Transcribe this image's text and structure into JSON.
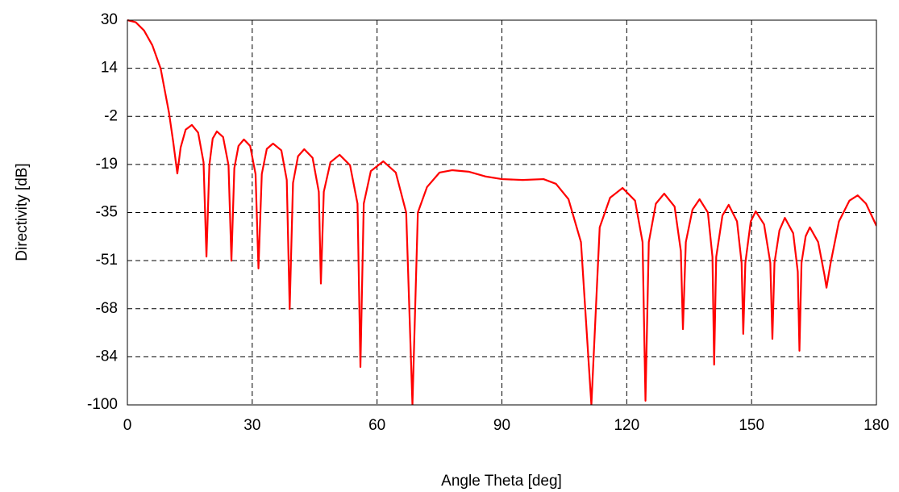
{
  "chart_data": {
    "type": "line",
    "xlabel": "Angle Theta [deg]",
    "ylabel": "Directivity [dB]",
    "xlim": [
      0,
      180
    ],
    "xticks": [
      0,
      30,
      60,
      90,
      120,
      150,
      180
    ],
    "ylim": [
      -100,
      30
    ],
    "yticks": [
      30,
      {
        "value": 13.75,
        "label": "14"
      },
      {
        "value": -2.5,
        "label": "-2"
      },
      {
        "value": -18.75,
        "label": "-19"
      },
      -35,
      {
        "value": -51.25,
        "label": "-51"
      },
      {
        "value": -67.5,
        "label": "-68"
      },
      {
        "value": -83.75,
        "label": "-84"
      },
      -100
    ],
    "grid": true,
    "series": [
      {
        "color": "#ff0000",
        "x": [
          0,
          2,
          4,
          6,
          8,
          10,
          11,
          12,
          12.8,
          14,
          15.5,
          17,
          18.3,
          19,
          19.7,
          20.5,
          21.5,
          23,
          24.3,
          25,
          25.7,
          26.7,
          28,
          29.5,
          30.8,
          31.5,
          32.3,
          33.5,
          35,
          37,
          38.3,
          39,
          39.8,
          41,
          42.5,
          44.5,
          46,
          46.5,
          47.2,
          48.8,
          51,
          53.5,
          55.3,
          56,
          56.8,
          58.5,
          61.5,
          64.5,
          67,
          68.5,
          69.8,
          72,
          75,
          78,
          82,
          86,
          90,
          95,
          100,
          103,
          106,
          109,
          111.5,
          113.5,
          116,
          119,
          122,
          123.8,
          124.5,
          125.3,
          127,
          129,
          131.5,
          133,
          133.5,
          134.2,
          135.8,
          137.5,
          139.5,
          140.6,
          141,
          141.5,
          143,
          144.5,
          146.5,
          147.6,
          148,
          148.5,
          149.8,
          151,
          153,
          154.5,
          155,
          155.5,
          156.7,
          158,
          160,
          161.1,
          161.5,
          162,
          163,
          164,
          166,
          167.5,
          168,
          169,
          171,
          173.5,
          175.5,
          177.5,
          180
        ],
        "values": [
          30,
          29.3,
          26.5,
          21.5,
          13.6,
          -1.3,
          -11,
          -21.8,
          -13,
          -7,
          -5.4,
          -8,
          -18,
          -49.9,
          -19,
          -10,
          -7.6,
          -9.5,
          -19,
          -51.3,
          -20,
          -12.5,
          -10.3,
          -12.5,
          -22,
          -53.9,
          -22,
          -13.5,
          -11.7,
          -14,
          -24,
          -67.6,
          -25,
          -16,
          -13.6,
          -16.5,
          -28,
          -59,
          -28,
          -18,
          -15.5,
          -19,
          -32,
          -87.2,
          -32,
          -21,
          -17.7,
          -21.5,
          -35,
          -100,
          -35,
          -26.4,
          -21.5,
          -20.7,
          -21.2,
          -22.8,
          -23.7,
          -24,
          -23.7,
          -25.3,
          -30.5,
          -45,
          -100,
          -40,
          -30,
          -26.7,
          -31,
          -45,
          -98.6,
          -45,
          -32,
          -28.6,
          -33,
          -48,
          -74.4,
          -45,
          -34,
          -30.5,
          -35,
          -50,
          -86.4,
          -50,
          -36,
          -32.4,
          -38,
          -52,
          -76,
          -52,
          -38,
          -34.6,
          -39,
          -52,
          -77.7,
          -52,
          -41,
          -36.8,
          -42,
          -55,
          -81.7,
          -52,
          -43,
          -40,
          -45,
          -56,
          -60.4,
          -52,
          -38,
          -31,
          -29.2,
          -32,
          -39.5
        ]
      }
    ]
  }
}
